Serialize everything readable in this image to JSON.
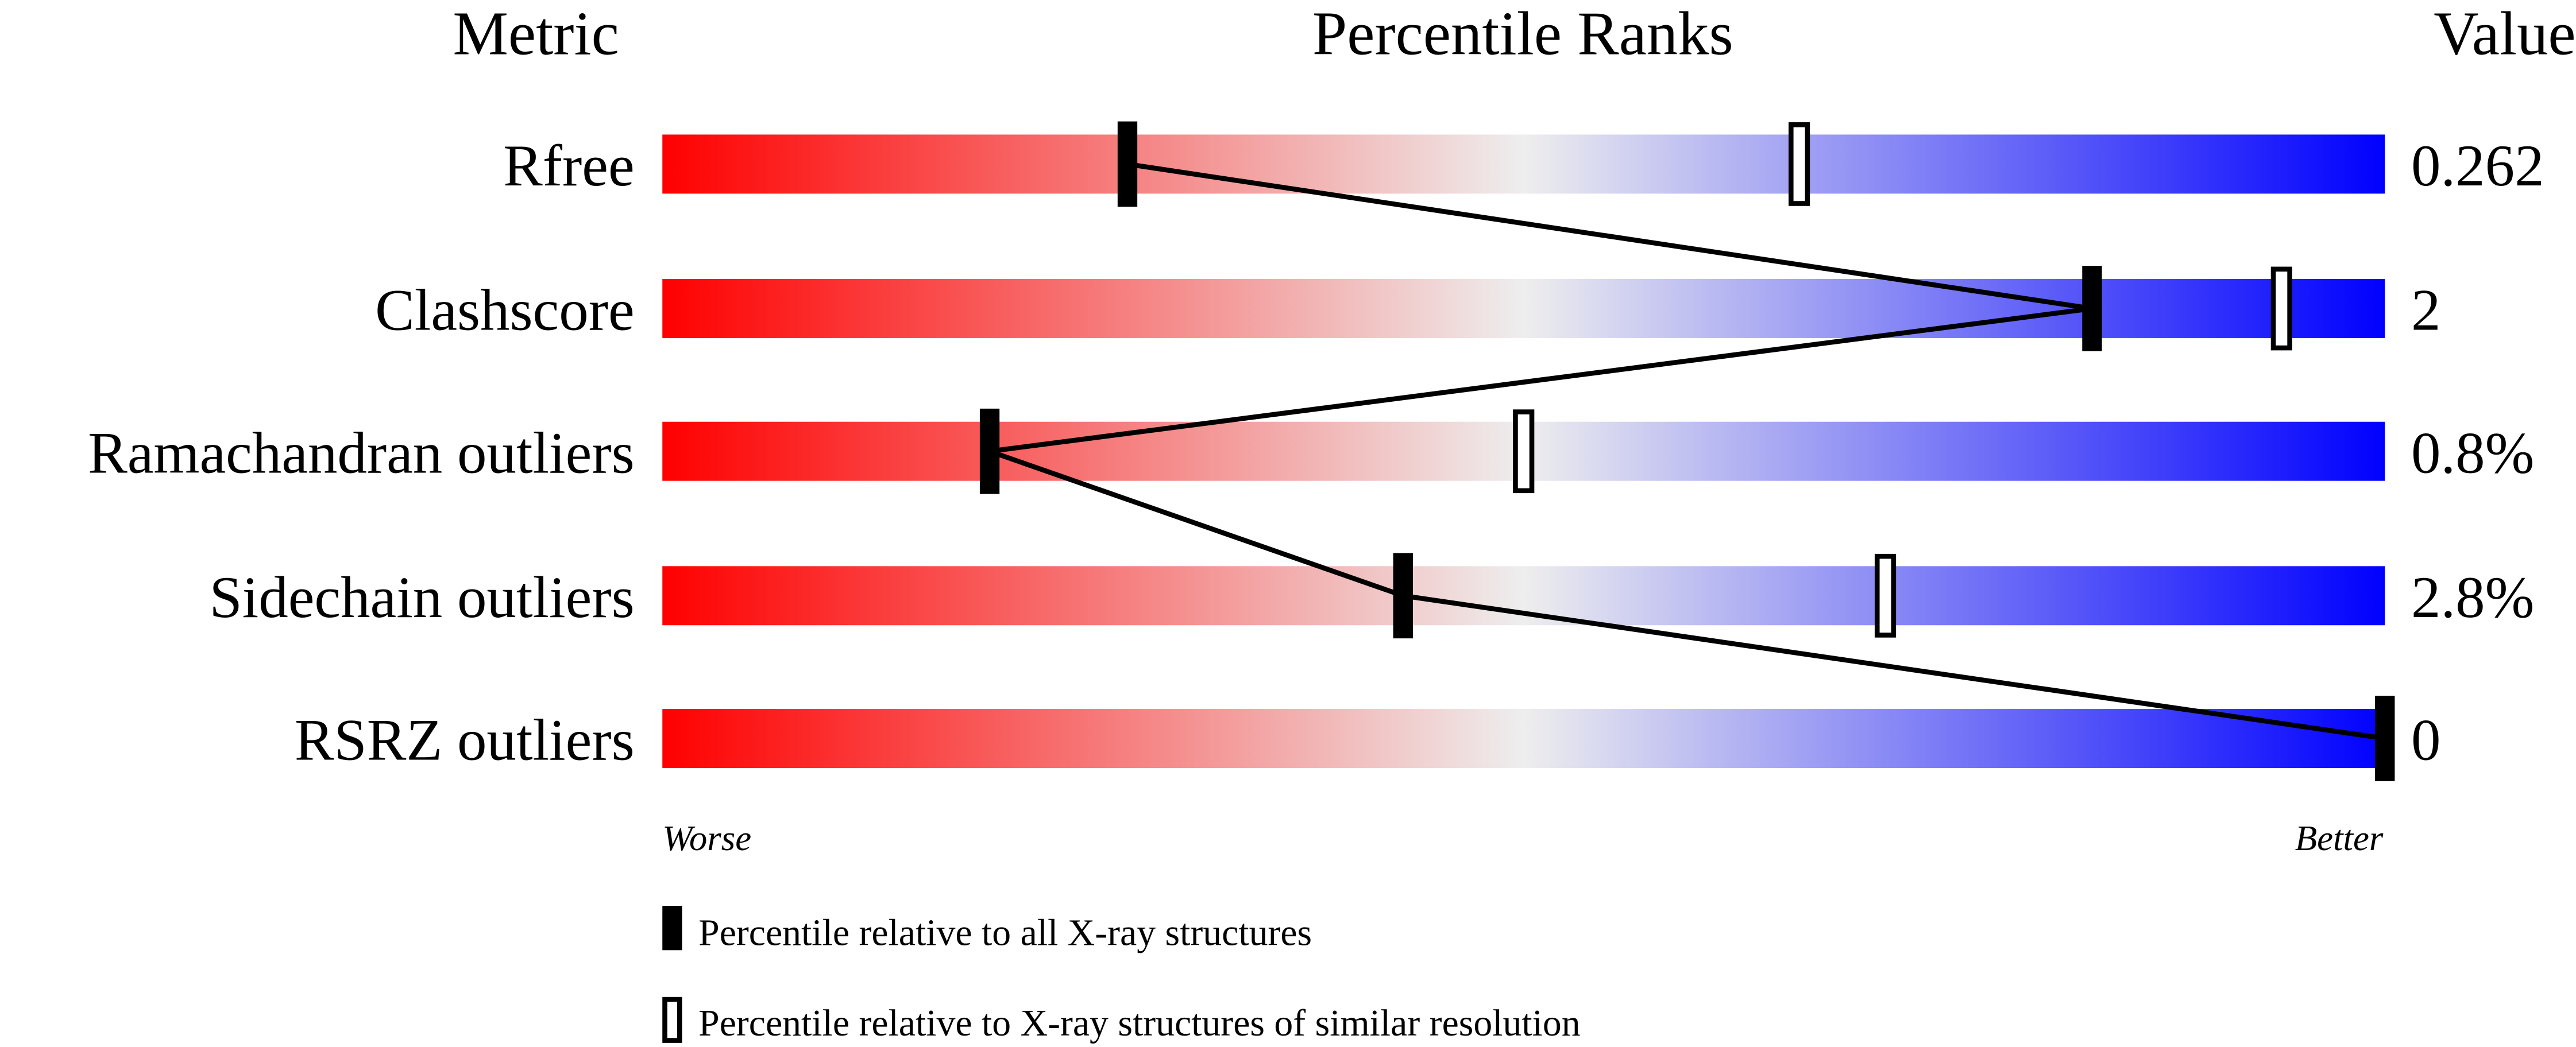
{
  "chart_data": {
    "type": "bar",
    "headers": {
      "metric": "Metric",
      "ranks": "Percentile Ranks",
      "value": "Value"
    },
    "xlim": [
      0,
      100
    ],
    "axis_labels": {
      "left": "Worse",
      "right": "Better"
    },
    "gradient_colors": {
      "worse": "#ff0000",
      "middle": "#eeeeee",
      "better": "#0000ff"
    },
    "metrics": [
      {
        "name": "Rfree",
        "value": "0.262",
        "percentile_all": 27,
        "percentile_similar": 66
      },
      {
        "name": "Clashscore",
        "value": "2",
        "percentile_all": 83,
        "percentile_similar": 94
      },
      {
        "name": "Ramachandran outliers",
        "value": "0.8%",
        "percentile_all": 19,
        "percentile_similar": 50
      },
      {
        "name": "Sidechain outliers",
        "value": "2.8%",
        "percentile_all": 43,
        "percentile_similar": 71
      },
      {
        "name": "RSRZ outliers",
        "value": "0",
        "percentile_all": 100,
        "percentile_similar": null
      }
    ],
    "legend": [
      {
        "marker": "filled",
        "label": "Percentile relative to all X-ray structures"
      },
      {
        "marker": "hollow",
        "label": "Percentile relative to X-ray structures of similar resolution"
      }
    ]
  }
}
